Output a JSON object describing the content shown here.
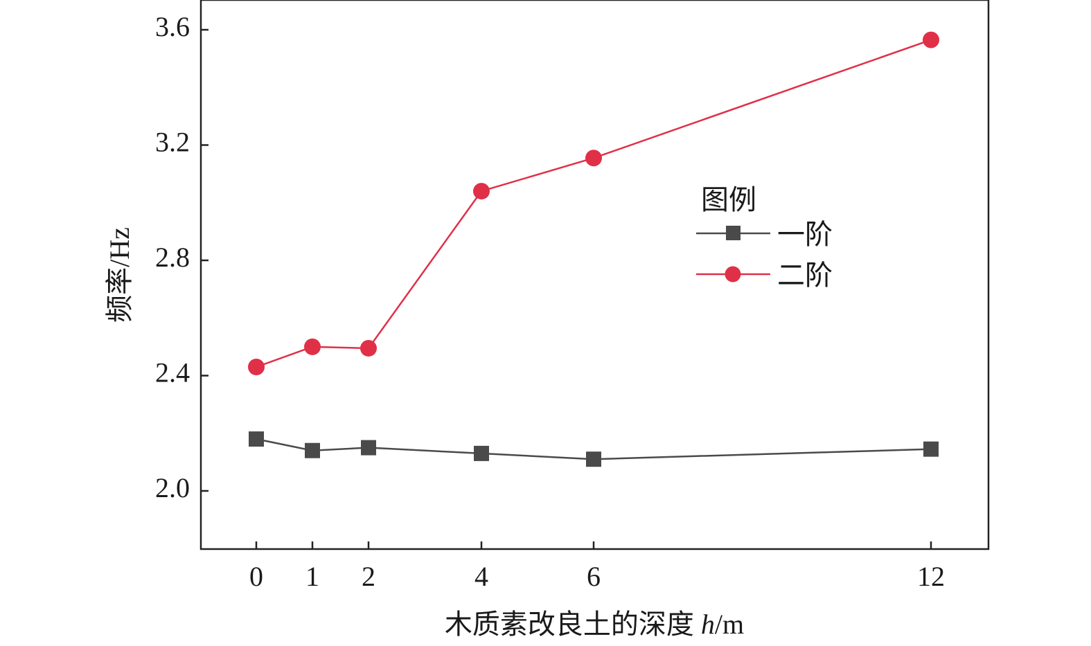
{
  "chart_data": {
    "type": "line",
    "xlabel_prefix": "木质素改良土的深度 ",
    "xlabel_var": "h",
    "xlabel_unit": "/m",
    "ylabel": "频率/Hz",
    "x_ticks": [
      "0",
      "1",
      "2",
      "4",
      "6",
      "12"
    ],
    "y_ticks": [
      "2.0",
      "2.4",
      "2.8",
      "3.2",
      "3.6"
    ],
    "ylim": [
      1.8,
      3.7
    ],
    "legend_title": "图例",
    "legend_position": "center-right",
    "grid": false,
    "series": [
      {
        "name": "一阶",
        "color": "#4a4a4a",
        "marker": "square",
        "values": [
          2.18,
          2.14,
          2.15,
          2.13,
          2.11,
          2.145
        ]
      },
      {
        "name": "二阶",
        "color": "#e03048",
        "marker": "circle",
        "values": [
          2.43,
          2.5,
          2.495,
          3.04,
          3.155,
          3.565
        ]
      }
    ]
  }
}
